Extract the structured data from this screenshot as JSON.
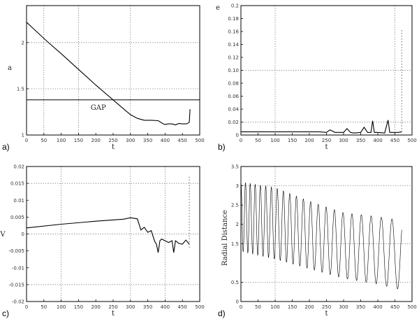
{
  "chart_data": [
    {
      "panel_label": "a)",
      "type": "line",
      "xlabel": "t",
      "ylabel": "a",
      "xlim": [
        0,
        500
      ],
      "xticks": [
        "0",
        "50",
        "100",
        "150",
        "200",
        "250",
        "300",
        "350",
        "400",
        "450",
        "500"
      ],
      "ylim": [
        1.0,
        2.4
      ],
      "yticks": [
        {
          "value": 2.0,
          "label": "2"
        },
        {
          "value": 1.5,
          "label": "1.5"
        },
        {
          "value": 1.0,
          "label": "1"
        }
      ],
      "grid": true,
      "annotation": "GAP",
      "gap_level": 1.38,
      "series": [
        {
          "x": [
            0,
            20,
            60,
            100,
            150,
            200,
            250,
            275,
            300,
            320,
            340,
            360,
            380,
            395,
            400,
            410,
            420,
            430,
            440,
            450,
            460,
            465,
            470,
            472
          ],
          "y": [
            2.22,
            2.15,
            2.01,
            1.88,
            1.71,
            1.54,
            1.38,
            1.3,
            1.22,
            1.18,
            1.16,
            1.16,
            1.155,
            1.12,
            1.115,
            1.12,
            1.12,
            1.11,
            1.125,
            1.12,
            1.12,
            1.125,
            1.14,
            1.28
          ]
        }
      ]
    },
    {
      "panel_label": "b)",
      "type": "line",
      "xlabel": "t",
      "ylabel": "e",
      "xlim": [
        0,
        500
      ],
      "xticks": [
        "0",
        "50",
        "100",
        "150",
        "200",
        "250",
        "300",
        "350",
        "400",
        "450",
        "500"
      ],
      "ylim": [
        0,
        0.2
      ],
      "yticks": [
        {
          "value": 0.2,
          "label": "0.2"
        },
        {
          "value": 0.18,
          "label": "0.18"
        },
        {
          "value": 0.16,
          "label": "0.16"
        },
        {
          "value": 0.14,
          "label": "0.14"
        },
        {
          "value": 0.12,
          "label": "0.12"
        },
        {
          "value": 0.1,
          "label": "0.10"
        },
        {
          "value": 0.08,
          "label": "0.08"
        },
        {
          "value": 0.06,
          "label": "0.06"
        },
        {
          "value": 0.04,
          "label": "0.04"
        },
        {
          "value": 0.02,
          "label": "0.02"
        },
        {
          "value": 0,
          "label": "0"
        }
      ],
      "grid": true,
      "series": [
        {
          "x": [
            0,
            50,
            100,
            150,
            200,
            230,
            250,
            260,
            275,
            300,
            310,
            320,
            330,
            350,
            360,
            370,
            380,
            385,
            390,
            400,
            420,
            430,
            435,
            440,
            460,
            470
          ],
          "y": [
            0.005,
            0.005,
            0.005,
            0.005,
            0.005,
            0.005,
            0.004,
            0.008,
            0.004,
            0.004,
            0.01,
            0.004,
            0.003,
            0.004,
            0.012,
            0.004,
            0.004,
            0.022,
            0.004,
            0.004,
            0.003,
            0.023,
            0.004,
            0.004,
            0.004,
            0.005
          ]
        }
      ],
      "outlier": {
        "x": 470,
        "y_from": 0.005,
        "y_to": 0.165
      }
    },
    {
      "panel_label": "c)",
      "type": "line",
      "xlabel": "t",
      "ylabel": "V",
      "xlim": [
        0,
        500
      ],
      "xticks": [
        "0",
        "50",
        "100",
        "150",
        "200",
        "250",
        "300",
        "350",
        "400",
        "450",
        "500"
      ],
      "ylim": [
        -0.02,
        0.02
      ],
      "yticks": [
        {
          "value": 0.02,
          "label": "0.02"
        },
        {
          "value": 0.015,
          "label": "0.015"
        },
        {
          "value": 0.01,
          "label": "0.01"
        },
        {
          "value": 0.005,
          "label": "0.005"
        },
        {
          "value": 0,
          "label": "0"
        },
        {
          "value": -0.005,
          "label": "-0.005"
        },
        {
          "value": -0.01,
          "label": "-0.01"
        },
        {
          "value": -0.015,
          "label": "-0.015"
        },
        {
          "value": -0.02,
          "label": "-0.02"
        }
      ],
      "grid": true,
      "series": [
        {
          "x": [
            0,
            100,
            200,
            280,
            300,
            320,
            330,
            340,
            350,
            360,
            370,
            375,
            380,
            385,
            390,
            400,
            410,
            420,
            425,
            430,
            440,
            450,
            460,
            470
          ],
          "y": [
            0.0018,
            0.0029,
            0.0038,
            0.0044,
            0.0048,
            0.0045,
            0.0012,
            0.002,
            0.0005,
            0.001,
            -0.0022,
            -0.003,
            -0.0055,
            -0.002,
            -0.0015,
            -0.002,
            -0.0025,
            -0.002,
            -0.0055,
            -0.002,
            -0.0028,
            -0.003,
            -0.0018,
            -0.003
          ]
        }
      ],
      "outlier": {
        "x": 470,
        "y_from": -0.004,
        "y_to": 0.017
      }
    },
    {
      "panel_label": "d)",
      "type": "line",
      "xlabel": "t",
      "ylabel": "Radial Distance",
      "xlim": [
        0,
        500
      ],
      "xticks": [
        "0",
        "50",
        "100",
        "150",
        "200",
        "250",
        "300",
        "350",
        "400",
        "450",
        "500"
      ],
      "ylim": [
        0,
        3.5
      ],
      "yticks": [
        {
          "value": 3.5,
          "label": "3.5"
        },
        {
          "value": 3,
          "label": "3"
        },
        {
          "value": 2.5,
          "label": "2.5"
        },
        {
          "value": 2,
          "label": "2"
        },
        {
          "value": 1.5,
          "label": "1.5"
        },
        {
          "value": 0.5,
          "label": "0.5"
        },
        {
          "value": 0,
          "label": "0"
        }
      ],
      "grid": true,
      "oscillation": {
        "peaks": [
          [
            0,
            3.1
          ],
          [
            100,
            2.95
          ],
          [
            200,
            2.6
          ],
          [
            300,
            2.3
          ],
          [
            400,
            2.2
          ],
          [
            470,
            2.1
          ]
        ],
        "troughs": [
          [
            0,
            1.3
          ],
          [
            100,
            1.1
          ],
          [
            200,
            0.85
          ],
          [
            300,
            0.6
          ],
          [
            400,
            0.45
          ],
          [
            470,
            0.3
          ]
        ],
        "period_start": 13,
        "period_end": 33
      }
    }
  ]
}
